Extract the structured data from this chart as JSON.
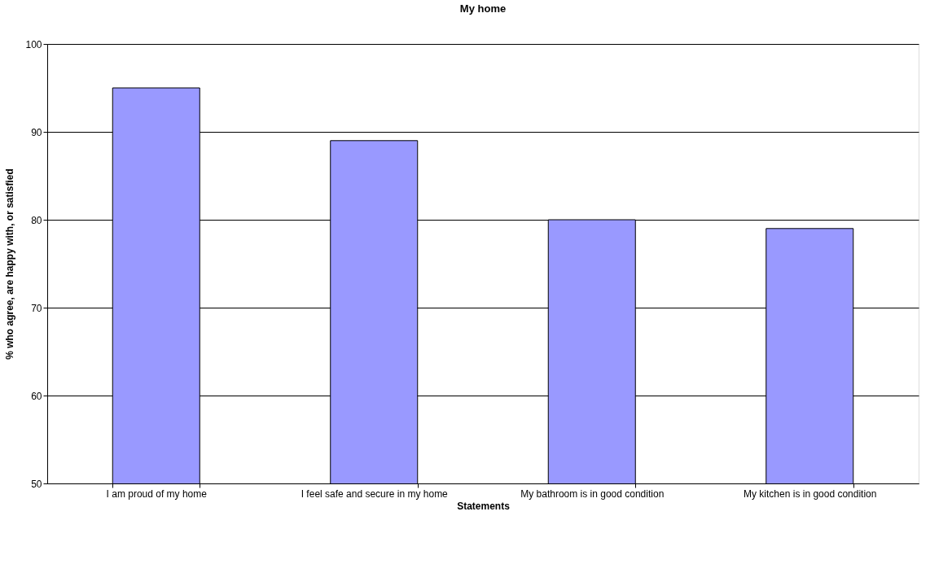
{
  "chart_data": {
    "type": "bar",
    "title": "My home",
    "xlabel": "Statements",
    "ylabel": "% who agree, are happy with, or satisfied",
    "categories": [
      "I am proud of my home",
      "I feel safe and secure in my home",
      "My bathroom is in good condition",
      "My kitchen is in good condition"
    ],
    "values": [
      95,
      89,
      80,
      79
    ],
    "color": "#9999ff",
    "ylim": [
      50,
      100
    ],
    "yticks": [
      50,
      60,
      70,
      80,
      90,
      100
    ],
    "grid": "y"
  }
}
